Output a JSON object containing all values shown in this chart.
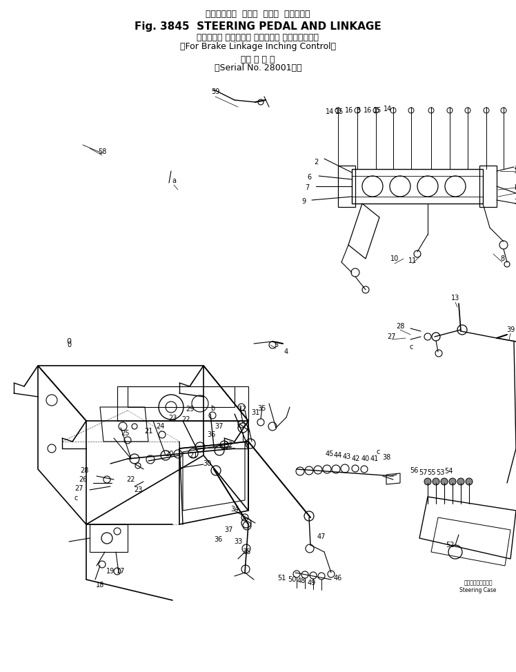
{
  "title_line1": "ステアリング  ペダル  および  リンケージ",
  "title_line2": "Fig. 3845  STEERING PEDAL AND LINKAGE",
  "title_line3": "（ブレーキ リンケージ インチング コントロール用",
  "title_line4": "（For Brake Linkage Inching Control）",
  "title_line5": "（適 用 号 機",
  "title_line6": "（Serial No. 28001～）",
  "bg_color": "#ffffff",
  "figsize": [
    7.48,
    9.74
  ],
  "dpi": 100
}
